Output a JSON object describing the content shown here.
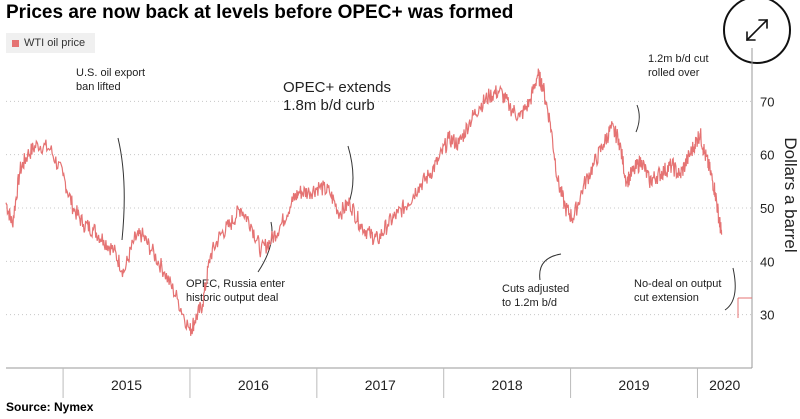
{
  "title": "Prices are now back at levels before OPEC+ was formed",
  "source": "Source: Nymex",
  "legend": {
    "label": "WTI oil price",
    "color": "#e57373"
  },
  "expand_button": {
    "icon": "expand-arrows-icon"
  },
  "chart_data": {
    "type": "line",
    "title": "Prices are now back at levels before OPEC+ was formed",
    "ylabel": "Dollars a barrel",
    "ylim": [
      20,
      80
    ],
    "yticks": [
      30,
      40,
      50,
      60,
      70
    ],
    "xlabels": [
      "2015",
      "2016",
      "2017",
      "2018",
      "2019",
      "2020"
    ],
    "xlim": [
      2014.55,
      2020.43
    ],
    "grid": "horizontal dotted",
    "series": [
      {
        "name": "WTI oil price",
        "color": "#e57373",
        "x": [
          2014.55,
          2014.6,
          2014.66,
          2014.72,
          2014.8,
          2014.9,
          2015.0,
          2015.08,
          2015.16,
          2015.24,
          2015.32,
          2015.4,
          2015.48,
          2015.56,
          2015.62,
          2015.7,
          2015.8,
          2015.9,
          2016.0,
          2016.04,
          2016.1,
          2016.16,
          2016.24,
          2016.32,
          2016.4,
          2016.48,
          2016.56,
          2016.64,
          2016.72,
          2016.8,
          2016.86,
          2016.94,
          2017.02,
          2017.1,
          2017.18,
          2017.26,
          2017.34,
          2017.42,
          2017.48,
          2017.56,
          2017.64,
          2017.72,
          2017.8,
          2017.88,
          2017.96,
          2018.04,
          2018.12,
          2018.2,
          2018.28,
          2018.36,
          2018.44,
          2018.52,
          2018.6,
          2018.68,
          2018.74,
          2018.78,
          2018.84,
          2018.9,
          2018.96,
          2019.02,
          2019.1,
          2019.18,
          2019.26,
          2019.32,
          2019.38,
          2019.44,
          2019.5,
          2019.56,
          2019.62,
          2019.68,
          2019.74,
          2019.8,
          2019.86,
          2019.92,
          2019.98,
          2020.02,
          2020.06,
          2020.1,
          2020.14,
          2020.17,
          2020.19
        ],
        "y": [
          51,
          47,
          57,
          60,
          62,
          61,
          56,
          50,
          47,
          46,
          44,
          42,
          38,
          44,
          45,
          42,
          38,
          33,
          27,
          29,
          32,
          41,
          45,
          47,
          50,
          47,
          42,
          44,
          47,
          51,
          53,
          53,
          54,
          53,
          49,
          51,
          47,
          45,
          44,
          47,
          49,
          51,
          54,
          56,
          59,
          63,
          62,
          66,
          69,
          71,
          72,
          69,
          67,
          70,
          75,
          73,
          66,
          55,
          50,
          48,
          54,
          58,
          62,
          65,
          63,
          55,
          57,
          59,
          55,
          56,
          57,
          58,
          56,
          59,
          62,
          64,
          60,
          57,
          53,
          48,
          45
        ]
      }
    ],
    "annotations": [
      "U.S. oil export ban lifted",
      "OPEC, Russia enter historic output deal",
      "OPEC+ extends 1.8m b/d curb",
      "Cuts adjusted to 1.2m b/d",
      "1.2m b/d cut rolled over",
      "No-deal on output cut extension"
    ]
  }
}
